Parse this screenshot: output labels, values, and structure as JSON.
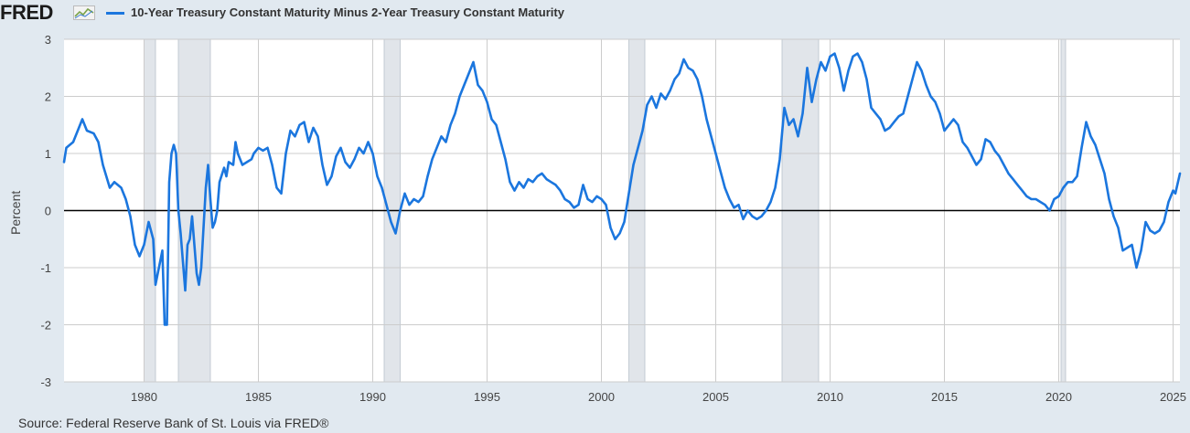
{
  "logo": {
    "text": "FRED",
    "icon": "fred-chart-icon"
  },
  "colors": {
    "line": "#1b76de",
    "recession": "#e1e5ea",
    "plot_bg": "#ffffff",
    "page_bg": "#e1e9f0",
    "grid": "#cccccc",
    "zero_line": "#000000"
  },
  "source": "Source: Federal Reserve Bank of St. Louis via FRED®",
  "chart_data": {
    "type": "line",
    "title": "",
    "xlabel": "",
    "ylabel": "Percent",
    "xlim": [
      1976.5,
      2025.3
    ],
    "ylim": [
      -3,
      3
    ],
    "x_ticks": [
      1980,
      1985,
      1990,
      1995,
      2000,
      2005,
      2010,
      2015,
      2020,
      2025
    ],
    "y_ticks": [
      -3,
      -2,
      -1,
      0,
      1,
      2,
      3
    ],
    "grid": true,
    "legend_position": "top-left",
    "reference_line": 0,
    "recessions": [
      [
        1980.0,
        1980.5
      ],
      [
        1981.5,
        1982.9
      ],
      [
        1990.5,
        1991.2
      ],
      [
        2001.2,
        2001.9
      ],
      [
        2007.9,
        2009.5
      ],
      [
        2020.1,
        2020.3
      ]
    ],
    "series": [
      {
        "name": "10-Year Treasury Constant Maturity Minus 2-Year Treasury Constant Maturity",
        "points": [
          [
            1976.5,
            0.85
          ],
          [
            1976.6,
            1.1
          ],
          [
            1976.9,
            1.2
          ],
          [
            1977.1,
            1.4
          ],
          [
            1977.3,
            1.6
          ],
          [
            1977.5,
            1.4
          ],
          [
            1977.8,
            1.35
          ],
          [
            1978.0,
            1.2
          ],
          [
            1978.2,
            0.8
          ],
          [
            1978.5,
            0.4
          ],
          [
            1978.7,
            0.5
          ],
          [
            1979.0,
            0.4
          ],
          [
            1979.2,
            0.2
          ],
          [
            1979.4,
            -0.1
          ],
          [
            1979.6,
            -0.6
          ],
          [
            1979.8,
            -0.8
          ],
          [
            1980.0,
            -0.6
          ],
          [
            1980.2,
            -0.2
          ],
          [
            1980.4,
            -0.5
          ],
          [
            1980.5,
            -1.3
          ],
          [
            1980.7,
            -0.9
          ],
          [
            1980.8,
            -0.7
          ],
          [
            1980.9,
            -2.0
          ],
          [
            1981.0,
            -2.0
          ],
          [
            1981.1,
            0.5
          ],
          [
            1981.2,
            1.0
          ],
          [
            1981.3,
            1.15
          ],
          [
            1981.4,
            1.0
          ],
          [
            1981.5,
            0.0
          ],
          [
            1981.6,
            -0.4
          ],
          [
            1981.7,
            -0.9
          ],
          [
            1981.8,
            -1.4
          ],
          [
            1981.9,
            -0.6
          ],
          [
            1982.0,
            -0.5
          ],
          [
            1982.1,
            -0.1
          ],
          [
            1982.2,
            -0.6
          ],
          [
            1982.3,
            -1.1
          ],
          [
            1982.4,
            -1.3
          ],
          [
            1982.5,
            -1.0
          ],
          [
            1982.6,
            -0.3
          ],
          [
            1982.7,
            0.4
          ],
          [
            1982.8,
            0.8
          ],
          [
            1982.9,
            0.2
          ],
          [
            1983.0,
            -0.3
          ],
          [
            1983.1,
            -0.2
          ],
          [
            1983.2,
            0.0
          ],
          [
            1983.3,
            0.5
          ],
          [
            1983.5,
            0.75
          ],
          [
            1983.6,
            0.6
          ],
          [
            1983.7,
            0.85
          ],
          [
            1983.9,
            0.8
          ],
          [
            1984.0,
            1.2
          ],
          [
            1984.1,
            1.0
          ],
          [
            1984.3,
            0.8
          ],
          [
            1984.5,
            0.85
          ],
          [
            1984.7,
            0.9
          ],
          [
            1984.8,
            1.0
          ],
          [
            1985.0,
            1.1
          ],
          [
            1985.2,
            1.05
          ],
          [
            1985.4,
            1.1
          ],
          [
            1985.6,
            0.8
          ],
          [
            1985.8,
            0.4
          ],
          [
            1986.0,
            0.3
          ],
          [
            1986.2,
            1.0
          ],
          [
            1986.4,
            1.4
          ],
          [
            1986.6,
            1.3
          ],
          [
            1986.8,
            1.5
          ],
          [
            1987.0,
            1.55
          ],
          [
            1987.2,
            1.2
          ],
          [
            1987.4,
            1.45
          ],
          [
            1987.6,
            1.3
          ],
          [
            1987.8,
            0.8
          ],
          [
            1988.0,
            0.45
          ],
          [
            1988.2,
            0.6
          ],
          [
            1988.4,
            0.95
          ],
          [
            1988.6,
            1.1
          ],
          [
            1988.8,
            0.85
          ],
          [
            1989.0,
            0.75
          ],
          [
            1989.2,
            0.9
          ],
          [
            1989.4,
            1.1
          ],
          [
            1989.6,
            1.0
          ],
          [
            1989.8,
            1.2
          ],
          [
            1990.0,
            1.0
          ],
          [
            1990.2,
            0.6
          ],
          [
            1990.4,
            0.4
          ],
          [
            1990.6,
            0.1
          ],
          [
            1990.8,
            -0.2
          ],
          [
            1991.0,
            -0.4
          ],
          [
            1991.2,
            0.0
          ],
          [
            1991.4,
            0.3
          ],
          [
            1991.6,
            0.1
          ],
          [
            1991.8,
            0.2
          ],
          [
            1992.0,
            0.15
          ],
          [
            1992.2,
            0.25
          ],
          [
            1992.4,
            0.6
          ],
          [
            1992.6,
            0.9
          ],
          [
            1992.8,
            1.1
          ],
          [
            1993.0,
            1.3
          ],
          [
            1993.2,
            1.2
          ],
          [
            1993.4,
            1.5
          ],
          [
            1993.6,
            1.7
          ],
          [
            1993.8,
            2.0
          ],
          [
            1994.0,
            2.2
          ],
          [
            1994.2,
            2.4
          ],
          [
            1994.4,
            2.6
          ],
          [
            1994.6,
            2.2
          ],
          [
            1994.8,
            2.1
          ],
          [
            1995.0,
            1.9
          ],
          [
            1995.2,
            1.6
          ],
          [
            1995.4,
            1.5
          ],
          [
            1995.6,
            1.2
          ],
          [
            1995.8,
            0.9
          ],
          [
            1996.0,
            0.5
          ],
          [
            1996.2,
            0.35
          ],
          [
            1996.4,
            0.5
          ],
          [
            1996.6,
            0.4
          ],
          [
            1996.8,
            0.55
          ],
          [
            1997.0,
            0.5
          ],
          [
            1997.2,
            0.6
          ],
          [
            1997.4,
            0.65
          ],
          [
            1997.6,
            0.55
          ],
          [
            1997.8,
            0.5
          ],
          [
            1998.0,
            0.45
          ],
          [
            1998.2,
            0.35
          ],
          [
            1998.4,
            0.2
          ],
          [
            1998.6,
            0.15
          ],
          [
            1998.8,
            0.05
          ],
          [
            1999.0,
            0.1
          ],
          [
            1999.2,
            0.45
          ],
          [
            1999.4,
            0.2
          ],
          [
            1999.6,
            0.15
          ],
          [
            1999.8,
            0.25
          ],
          [
            2000.0,
            0.2
          ],
          [
            2000.2,
            0.1
          ],
          [
            2000.4,
            -0.3
          ],
          [
            2000.6,
            -0.5
          ],
          [
            2000.8,
            -0.4
          ],
          [
            2001.0,
            -0.2
          ],
          [
            2001.2,
            0.3
          ],
          [
            2001.4,
            0.8
          ],
          [
            2001.6,
            1.1
          ],
          [
            2001.8,
            1.4
          ],
          [
            2002.0,
            1.85
          ],
          [
            2002.2,
            2.0
          ],
          [
            2002.4,
            1.8
          ],
          [
            2002.6,
            2.05
          ],
          [
            2002.8,
            1.95
          ],
          [
            2003.0,
            2.1
          ],
          [
            2003.2,
            2.3
          ],
          [
            2003.4,
            2.4
          ],
          [
            2003.6,
            2.65
          ],
          [
            2003.8,
            2.5
          ],
          [
            2004.0,
            2.45
          ],
          [
            2004.2,
            2.3
          ],
          [
            2004.4,
            2.0
          ],
          [
            2004.6,
            1.6
          ],
          [
            2004.8,
            1.3
          ],
          [
            2005.0,
            1.0
          ],
          [
            2005.2,
            0.7
          ],
          [
            2005.4,
            0.4
          ],
          [
            2005.6,
            0.2
          ],
          [
            2005.8,
            0.05
          ],
          [
            2006.0,
            0.1
          ],
          [
            2006.2,
            -0.15
          ],
          [
            2006.4,
            0.0
          ],
          [
            2006.6,
            -0.1
          ],
          [
            2006.8,
            -0.15
          ],
          [
            2007.0,
            -0.1
          ],
          [
            2007.2,
            0.0
          ],
          [
            2007.4,
            0.15
          ],
          [
            2007.6,
            0.4
          ],
          [
            2007.8,
            0.9
          ],
          [
            2008.0,
            1.8
          ],
          [
            2008.2,
            1.5
          ],
          [
            2008.4,
            1.6
          ],
          [
            2008.6,
            1.3
          ],
          [
            2008.8,
            1.7
          ],
          [
            2009.0,
            2.5
          ],
          [
            2009.2,
            1.9
          ],
          [
            2009.4,
            2.3
          ],
          [
            2009.6,
            2.6
          ],
          [
            2009.8,
            2.45
          ],
          [
            2010.0,
            2.7
          ],
          [
            2010.2,
            2.75
          ],
          [
            2010.4,
            2.5
          ],
          [
            2010.6,
            2.1
          ],
          [
            2010.8,
            2.45
          ],
          [
            2011.0,
            2.7
          ],
          [
            2011.2,
            2.75
          ],
          [
            2011.4,
            2.6
          ],
          [
            2011.6,
            2.3
          ],
          [
            2011.8,
            1.8
          ],
          [
            2012.0,
            1.7
          ],
          [
            2012.2,
            1.6
          ],
          [
            2012.4,
            1.4
          ],
          [
            2012.6,
            1.45
          ],
          [
            2012.8,
            1.55
          ],
          [
            2013.0,
            1.65
          ],
          [
            2013.2,
            1.7
          ],
          [
            2013.4,
            2.0
          ],
          [
            2013.6,
            2.3
          ],
          [
            2013.8,
            2.6
          ],
          [
            2014.0,
            2.45
          ],
          [
            2014.2,
            2.2
          ],
          [
            2014.4,
            2.0
          ],
          [
            2014.6,
            1.9
          ],
          [
            2014.8,
            1.7
          ],
          [
            2015.0,
            1.4
          ],
          [
            2015.2,
            1.5
          ],
          [
            2015.4,
            1.6
          ],
          [
            2015.6,
            1.5
          ],
          [
            2015.8,
            1.2
          ],
          [
            2016.0,
            1.1
          ],
          [
            2016.2,
            0.95
          ],
          [
            2016.4,
            0.8
          ],
          [
            2016.6,
            0.9
          ],
          [
            2016.8,
            1.25
          ],
          [
            2017.0,
            1.2
          ],
          [
            2017.2,
            1.05
          ],
          [
            2017.4,
            0.95
          ],
          [
            2017.6,
            0.8
          ],
          [
            2017.8,
            0.65
          ],
          [
            2018.0,
            0.55
          ],
          [
            2018.2,
            0.45
          ],
          [
            2018.4,
            0.35
          ],
          [
            2018.6,
            0.25
          ],
          [
            2018.8,
            0.2
          ],
          [
            2019.0,
            0.2
          ],
          [
            2019.2,
            0.15
          ],
          [
            2019.4,
            0.1
          ],
          [
            2019.6,
            0.0
          ],
          [
            2019.8,
            0.2
          ],
          [
            2020.0,
            0.25
          ],
          [
            2020.2,
            0.4
          ],
          [
            2020.4,
            0.5
          ],
          [
            2020.6,
            0.5
          ],
          [
            2020.8,
            0.6
          ],
          [
            2021.0,
            1.1
          ],
          [
            2021.2,
            1.55
          ],
          [
            2021.4,
            1.3
          ],
          [
            2021.6,
            1.15
          ],
          [
            2021.8,
            0.9
          ],
          [
            2022.0,
            0.65
          ],
          [
            2022.2,
            0.2
          ],
          [
            2022.4,
            -0.1
          ],
          [
            2022.6,
            -0.3
          ],
          [
            2022.8,
            -0.7
          ],
          [
            2023.0,
            -0.65
          ],
          [
            2023.2,
            -0.6
          ],
          [
            2023.4,
            -1.0
          ],
          [
            2023.6,
            -0.7
          ],
          [
            2023.8,
            -0.2
          ],
          [
            2024.0,
            -0.35
          ],
          [
            2024.2,
            -0.4
          ],
          [
            2024.4,
            -0.35
          ],
          [
            2024.6,
            -0.2
          ],
          [
            2024.8,
            0.15
          ],
          [
            2025.0,
            0.35
          ],
          [
            2025.1,
            0.3
          ],
          [
            2025.3,
            0.65
          ]
        ]
      }
    ]
  }
}
